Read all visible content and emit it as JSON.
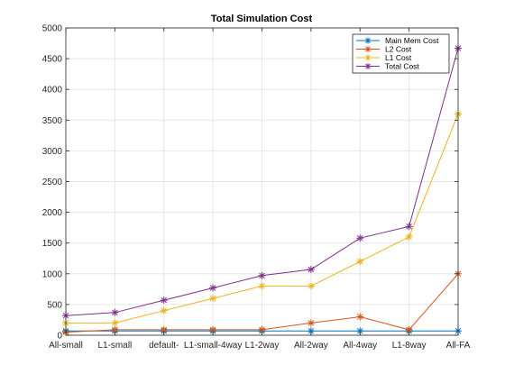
{
  "chart_data": {
    "type": "line",
    "title": "Total Simulation Cost",
    "xlabel": "",
    "ylabel": "",
    "categories": [
      "All-small",
      "L1-small",
      "default-",
      "L1-small-4way",
      "L1-2way",
      "All-2way",
      "All-4way",
      "L1-8way",
      "All-FA"
    ],
    "ylim": [
      0,
      5000
    ],
    "yticks": [
      0,
      500,
      1000,
      1500,
      2000,
      2500,
      3000,
      3500,
      4000,
      4500,
      5000
    ],
    "grid": true,
    "legend_position": "top-right",
    "series": [
      {
        "name": "Main Mem Cost",
        "color": "#0072BD",
        "marker": "asterisk",
        "values": [
          70,
          70,
          70,
          70,
          70,
          70,
          70,
          70,
          70
        ]
      },
      {
        "name": "L2 Cost",
        "color": "#D95319",
        "marker": "asterisk",
        "values": [
          50,
          90,
          90,
          90,
          90,
          200,
          300,
          90,
          1000
        ]
      },
      {
        "name": "L1 Cost",
        "color": "#EDB120",
        "marker": "asterisk",
        "values": [
          200,
          200,
          400,
          600,
          800,
          800,
          1200,
          1600,
          3600
        ]
      },
      {
        "name": "Total Cost",
        "color": "#7E2F8E",
        "marker": "asterisk",
        "values": [
          320,
          370,
          570,
          770,
          970,
          1070,
          1580,
          1770,
          4670
        ]
      }
    ]
  }
}
